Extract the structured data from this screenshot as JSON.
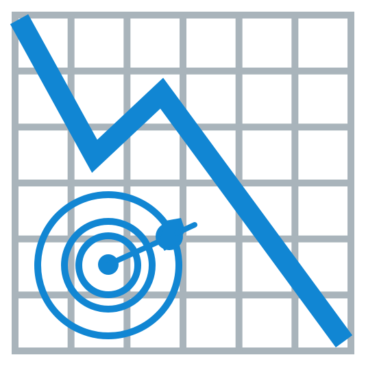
{
  "illustration": {
    "subject": "downward-trend-chart-with-target-icon",
    "colors": {
      "grid": "#a9b4bb",
      "trend_line": "#1186d3",
      "target": "#1186d3",
      "background": "#ffffff"
    },
    "grid": {
      "columns": 6,
      "rows": 6
    },
    "icons": [
      "line-chart-icon",
      "target-icon",
      "dart-icon"
    ]
  }
}
